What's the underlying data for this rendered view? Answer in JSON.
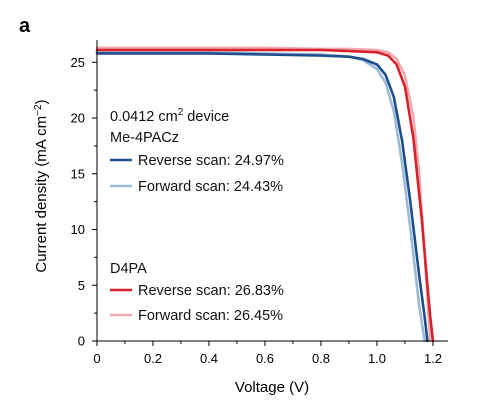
{
  "panel_label": "a",
  "chart_data": {
    "type": "line",
    "xlabel": "Voltage (V)",
    "ylabel_parts": [
      "Current density (mA cm",
      "−2",
      ")"
    ],
    "xlim": [
      0,
      1.2
    ],
    "ylim": [
      0,
      27
    ],
    "xticks": [
      0,
      0.2,
      0.4,
      0.6,
      0.8,
      1.0,
      1.2
    ],
    "xtick_labels": [
      "0",
      "0.2",
      "0.4",
      "0.6",
      "0.8",
      "1.0",
      "1.2"
    ],
    "yticks": [
      0,
      5,
      10,
      15,
      20,
      25
    ],
    "ytick_labels": [
      "0",
      "5",
      "10",
      "15",
      "20",
      "25"
    ],
    "grid": false,
    "legend_groups": [
      {
        "header_parts": [
          "0.0412 cm",
          "2",
          " device"
        ],
        "title": "Me-4PACz"
      },
      {
        "title": "D4PA"
      }
    ],
    "series": [
      {
        "name": "Reverse scan: 24.97%",
        "group": 0,
        "color": "#1f4e8c",
        "x": [
          0,
          0.2,
          0.4,
          0.6,
          0.8,
          0.9,
          0.95,
          1.0,
          1.03,
          1.06,
          1.09,
          1.12,
          1.15,
          1.17,
          1.18
        ],
        "y": [
          25.8,
          25.8,
          25.8,
          25.7,
          25.6,
          25.5,
          25.3,
          24.8,
          23.9,
          21.9,
          17.9,
          12.3,
          6.0,
          2.2,
          0
        ]
      },
      {
        "name": "Forward scan: 24.43%",
        "group": 0,
        "color": "#9dbad8",
        "x": [
          0,
          0.2,
          0.4,
          0.6,
          0.8,
          0.9,
          0.95,
          1.0,
          1.03,
          1.06,
          1.09,
          1.12,
          1.15,
          1.17
        ],
        "y": [
          25.9,
          25.9,
          25.9,
          25.8,
          25.7,
          25.5,
          25.2,
          24.4,
          23.2,
          20.6,
          15.9,
          9.9,
          3.3,
          0
        ]
      },
      {
        "name": "Reverse scan: 26.83%",
        "group": 1,
        "color": "#d7212b",
        "x": [
          0,
          0.2,
          0.4,
          0.6,
          0.8,
          0.9,
          1.0,
          1.04,
          1.07,
          1.1,
          1.13,
          1.16,
          1.18,
          1.19,
          1.2
        ],
        "y": [
          26.1,
          26.1,
          26.1,
          26.1,
          26.1,
          26.0,
          25.9,
          25.6,
          24.8,
          22.8,
          18.2,
          10.9,
          5.0,
          2.2,
          0
        ]
      },
      {
        "name": "Forward scan: 26.45%",
        "group": 1,
        "color": "#f1aaaf",
        "x": [
          0,
          0.2,
          0.4,
          0.6,
          0.8,
          0.9,
          1.0,
          1.04,
          1.07,
          1.1,
          1.13,
          1.15,
          1.17,
          1.18,
          1.19
        ],
        "y": [
          26.3,
          26.3,
          26.3,
          26.3,
          26.2,
          26.2,
          26.1,
          25.9,
          25.3,
          23.8,
          20.1,
          15.2,
          8.0,
          3.8,
          0
        ]
      }
    ]
  }
}
